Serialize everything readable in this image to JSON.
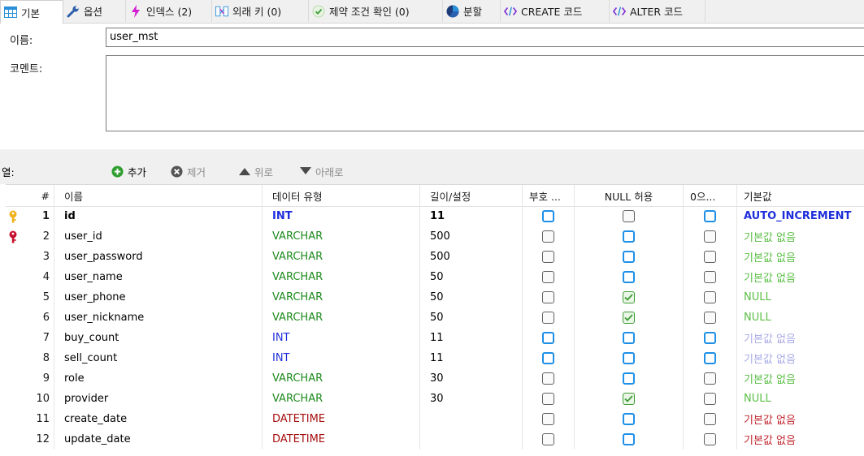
{
  "tabs": [
    {
      "label": "기본",
      "icon": "table-icon"
    },
    {
      "label": "옵션",
      "icon": "wrench-icon"
    },
    {
      "label": "인덱스 (2)",
      "icon": "lightning-icon"
    },
    {
      "label": "외래 키 (0)",
      "icon": "foreign-key-icon"
    },
    {
      "label": "제약 조건 확인 (0)",
      "icon": "check-circle-icon"
    },
    {
      "label": "분할",
      "icon": "pie-icon"
    },
    {
      "label": "CREATE 코드",
      "icon": "code-icon"
    },
    {
      "label": "ALTER 코드",
      "icon": "code-icon"
    }
  ],
  "form": {
    "name_label": "이름:",
    "name_value": "user_mst",
    "comment_label": "코멘트:",
    "comment_value": ""
  },
  "toolbar": {
    "columns_label": "열:",
    "add": "추가",
    "remove": "제거",
    "up": "위로",
    "down": "아래로"
  },
  "grid": {
    "headers": [
      "#",
      "이름",
      "데이터 유형",
      "길이/설정",
      "부호 ...",
      "NULL 허용",
      "0으...",
      "기본값"
    ],
    "rows": [
      {
        "num": "1",
        "name": "id",
        "type": "INT",
        "length": "11",
        "unsigned": false,
        "nullable": false,
        "zerofill": false,
        "default": "AUTO_INCREMENT",
        "key": "primary"
      },
      {
        "num": "2",
        "name": "user_id",
        "type": "VARCHAR",
        "length": "500",
        "unsigned": false,
        "nullable": false,
        "zerofill": false,
        "default": "기본값 없음",
        "key": "unique"
      },
      {
        "num": "3",
        "name": "user_password",
        "type": "VARCHAR",
        "length": "500",
        "unsigned": false,
        "nullable": false,
        "zerofill": false,
        "default": "기본값 없음"
      },
      {
        "num": "4",
        "name": "user_name",
        "type": "VARCHAR",
        "length": "50",
        "unsigned": false,
        "nullable": false,
        "zerofill": false,
        "default": "기본값 없음"
      },
      {
        "num": "5",
        "name": "user_phone",
        "type": "VARCHAR",
        "length": "50",
        "unsigned": false,
        "nullable": true,
        "zerofill": false,
        "default": "NULL"
      },
      {
        "num": "6",
        "name": "user_nickname",
        "type": "VARCHAR",
        "length": "50",
        "unsigned": false,
        "nullable": true,
        "zerofill": false,
        "default": "NULL"
      },
      {
        "num": "7",
        "name": "buy_count",
        "type": "INT",
        "length": "11",
        "unsigned": false,
        "nullable": false,
        "zerofill": false,
        "default": "기본값 없음"
      },
      {
        "num": "8",
        "name": "sell_count",
        "type": "INT",
        "length": "11",
        "unsigned": false,
        "nullable": false,
        "zerofill": false,
        "default": "기본값 없음"
      },
      {
        "num": "9",
        "name": "role",
        "type": "VARCHAR",
        "length": "30",
        "unsigned": false,
        "nullable": false,
        "zerofill": false,
        "default": "기본값 없음"
      },
      {
        "num": "10",
        "name": "provider",
        "type": "VARCHAR",
        "length": "30",
        "unsigned": false,
        "nullable": true,
        "zerofill": false,
        "default": "NULL"
      },
      {
        "num": "11",
        "name": "create_date",
        "type": "DATETIME",
        "length": "",
        "unsigned": false,
        "nullable": false,
        "zerofill": false,
        "default": "기본값 없음"
      },
      {
        "num": "12",
        "name": "update_date",
        "type": "DATETIME",
        "length": "",
        "unsigned": false,
        "nullable": false,
        "zerofill": false,
        "default": "기본값 없음"
      }
    ]
  },
  "colors": {
    "int_type": "#1e2edb",
    "varchar_type": "#1d8a1d",
    "datetime_type": "#a50f0f",
    "checkbox_active": "#1e90e8",
    "checkbox_checked": "#3d9b35",
    "primary_key": "#f0b21c",
    "unique_key": "#c8102e"
  }
}
